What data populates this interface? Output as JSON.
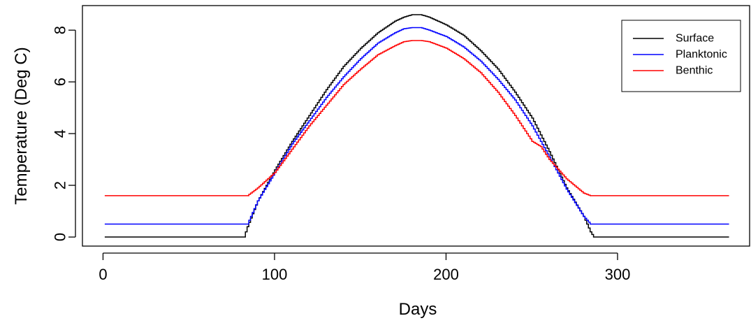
{
  "chart_data": {
    "type": "line",
    "title": "",
    "xlabel": "Days",
    "ylabel": "Temperature (Deg C)",
    "xlim": [
      -12,
      377
    ],
    "ylim": [
      -0.35,
      8.95
    ],
    "xticks": [
      0,
      100,
      200,
      300
    ],
    "yticks": [
      0,
      2,
      4,
      6,
      8
    ],
    "legend": {
      "placement": "top-right"
    },
    "series": [
      {
        "name": "Surface",
        "color": "#000000",
        "x": [
          1,
          82,
          84,
          90,
          100,
          110,
          120,
          130,
          140,
          150,
          160,
          170,
          175,
          180,
          185,
          190,
          200,
          210,
          220,
          230,
          240,
          250,
          260,
          270,
          280,
          284,
          286,
          365
        ],
        "y": [
          0,
          0,
          0.4,
          1.4,
          2.6,
          3.7,
          4.7,
          5.7,
          6.6,
          7.3,
          7.9,
          8.35,
          8.5,
          8.6,
          8.6,
          8.5,
          8.2,
          7.8,
          7.2,
          6.5,
          5.6,
          4.6,
          3.3,
          1.9,
          0.8,
          0.2,
          0,
          0
        ]
      },
      {
        "name": "Planktonic",
        "color": "#0000ff",
        "x": [
          1,
          84,
          90,
          100,
          110,
          120,
          130,
          140,
          150,
          160,
          170,
          175,
          180,
          185,
          190,
          200,
          210,
          220,
          230,
          240,
          250,
          260,
          270,
          280,
          284,
          365
        ],
        "y": [
          0.5,
          0.5,
          1.4,
          2.5,
          3.6,
          4.5,
          5.4,
          6.2,
          6.9,
          7.5,
          7.9,
          8.05,
          8.1,
          8.1,
          8.0,
          7.75,
          7.35,
          6.8,
          6.1,
          5.3,
          4.3,
          3.1,
          1.85,
          0.8,
          0.5,
          0.5
        ]
      },
      {
        "name": "Benthic",
        "color": "#ff0000",
        "x": [
          1,
          84,
          90,
          100,
          110,
          120,
          130,
          140,
          150,
          160,
          170,
          175,
          180,
          185,
          190,
          200,
          210,
          220,
          230,
          240,
          250,
          255,
          260,
          270,
          280,
          284,
          365
        ],
        "y": [
          1.6,
          1.6,
          1.9,
          2.5,
          3.4,
          4.3,
          5.1,
          5.9,
          6.5,
          7.05,
          7.4,
          7.55,
          7.6,
          7.6,
          7.55,
          7.3,
          6.9,
          6.35,
          5.6,
          4.7,
          3.7,
          3.5,
          3.0,
          2.25,
          1.7,
          1.6,
          1.6
        ]
      }
    ]
  }
}
